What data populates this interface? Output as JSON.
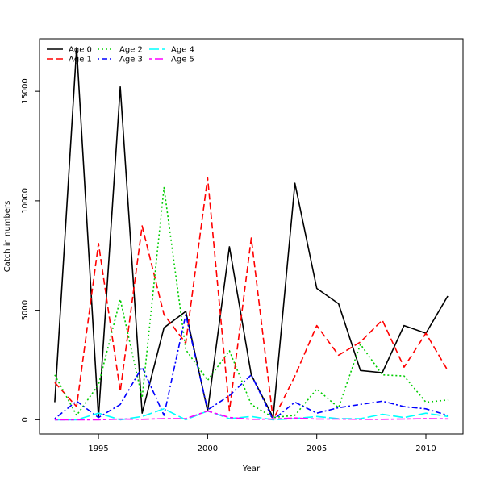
{
  "chart_data": {
    "type": "line",
    "xlabel": "Year",
    "ylabel": "Catch in numbers",
    "xlim": [
      1992.3,
      2011.7
    ],
    "ylim": [
      -650,
      17400
    ],
    "x_ticks": [
      1995,
      2000,
      2005,
      2010
    ],
    "y_ticks": [
      0,
      5000,
      10000,
      15000
    ],
    "legend_position": "top-left",
    "grid": false,
    "x": [
      1993,
      1994,
      1995,
      1996,
      1997,
      1998,
      1999,
      2000,
      2001,
      2002,
      2003,
      2004,
      2005,
      2006,
      2007,
      2008,
      2009,
      2010,
      2011
    ],
    "series": [
      {
        "name": "Age 0",
        "color": "#000000",
        "dash": "solid",
        "values": [
          800,
          17000,
          100,
          15200,
          300,
          4200,
          4950,
          400,
          7900,
          2050,
          100,
          10800,
          6000,
          5300,
          2250,
          2150,
          4300,
          3950,
          5650
        ]
      },
      {
        "name": "Age 1",
        "color": "#ff0000",
        "dash": "dashed",
        "values": [
          1700,
          600,
          8050,
          1300,
          8850,
          4800,
          3500,
          11050,
          400,
          8300,
          0,
          2000,
          4300,
          2950,
          3550,
          4550,
          2400,
          3950,
          2250
        ]
      },
      {
        "name": "Age 2",
        "color": "#00cd00",
        "dash": "dotted",
        "values": [
          2050,
          200,
          1600,
          5500,
          1000,
          10600,
          3200,
          1800,
          3150,
          700,
          100,
          200,
          1400,
          550,
          3450,
          2050,
          2000,
          800,
          900
        ]
      },
      {
        "name": "Age 3",
        "color": "#0000ff",
        "dash": "dotdash",
        "values": [
          50,
          850,
          100,
          700,
          2400,
          200,
          4800,
          450,
          1100,
          2050,
          0,
          800,
          300,
          550,
          700,
          850,
          600,
          500,
          200
        ]
      },
      {
        "name": "Age 4",
        "color": "#00ffff",
        "dash": "longdash",
        "values": [
          0,
          0,
          300,
          0,
          150,
          500,
          0,
          400,
          50,
          150,
          0,
          50,
          150,
          50,
          50,
          250,
          100,
          300,
          150
        ]
      },
      {
        "name": "Age 5",
        "color": "#ff00ff",
        "dash": "twodash",
        "values": [
          0,
          0,
          0,
          30,
          20,
          50,
          50,
          400,
          100,
          20,
          30,
          80,
          30,
          30,
          20,
          20,
          30,
          50,
          40
        ]
      }
    ]
  }
}
